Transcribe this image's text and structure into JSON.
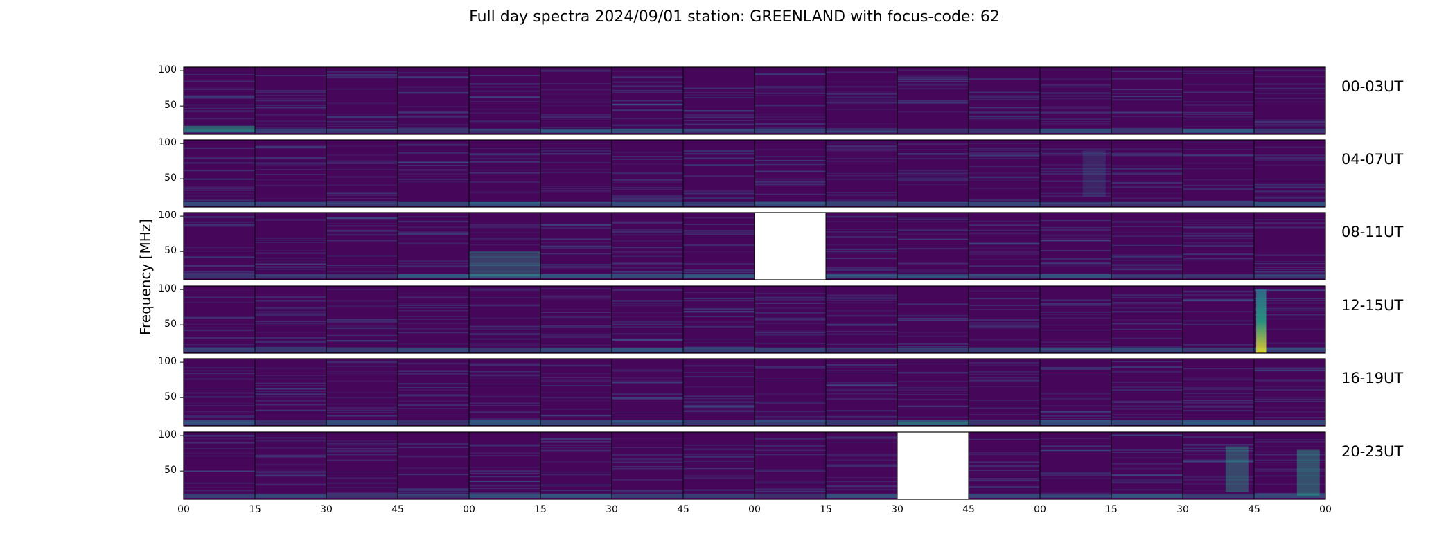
{
  "title": "Full day spectra 2024/09/01 station: GREENLAND with focus-code: 62",
  "chart_data": {
    "type": "heatmap",
    "title": "Full day spectra 2024/09/01 station: GREENLAND with focus-code: 62",
    "ylabel": "Frequency [MHz]",
    "xlabel": "",
    "ylim": [
      10,
      105
    ],
    "y_ticks": [
      "100",
      "50"
    ],
    "x_ticks": [
      "00",
      "15",
      "30",
      "45",
      "00",
      "15",
      "30",
      "45",
      "00",
      "15",
      "30",
      "45",
      "00",
      "15",
      "30",
      "45",
      "00"
    ],
    "colormap": "viridis",
    "panels_per_row": 16,
    "panel_minutes": 15,
    "rows": [
      {
        "label": "00-03UT",
        "missing": [],
        "bursts": [
          {
            "panel": 0,
            "fmin": 14,
            "fmax": 22,
            "intensity": 0.55
          }
        ]
      },
      {
        "label": "04-07UT",
        "missing": [],
        "bursts": [
          {
            "panel": 12,
            "fmin": 25,
            "fmax": 90,
            "intensity": 0.05
          }
        ]
      },
      {
        "label": "08-11UT",
        "missing": [
          8
        ],
        "bursts": [
          {
            "panel": 4,
            "fmin": 15,
            "fmax": 50,
            "intensity": 0.35
          }
        ]
      },
      {
        "label": "12-15UT",
        "missing": [],
        "bursts": [
          {
            "panel": 15,
            "fmin": 10,
            "fmax": 100,
            "intensity": 0.85
          }
        ]
      },
      {
        "label": "16-19UT",
        "missing": [],
        "bursts": [
          {
            "panel": 10,
            "fmin": 12,
            "fmax": 16,
            "intensity": 0.4
          }
        ]
      },
      {
        "label": "20-23UT",
        "missing": [
          10
        ],
        "bursts": [
          {
            "panel": 14,
            "fmin": 20,
            "fmax": 85,
            "intensity": 0.4
          },
          {
            "panel": 15,
            "fmin": 15,
            "fmax": 80,
            "intensity": 0.45
          }
        ]
      }
    ],
    "colors": {
      "background": "#46075a",
      "stripe": "#3b5a8c",
      "low": "#2a788e",
      "mid": "#22a884",
      "high": "#fde725",
      "missing": "#ffffff",
      "frame": "#000000"
    }
  }
}
